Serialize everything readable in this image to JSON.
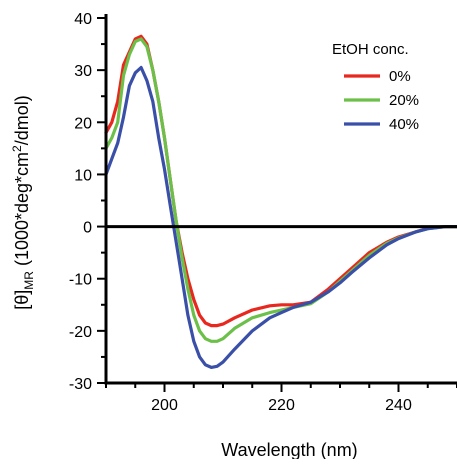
{
  "chart_data": {
    "type": "line",
    "xlabel": "Wavelength (nm)",
    "ylabel": {
      "pre": "[θ]",
      "sub": "MR",
      "mid1": " (1000*deg*cm",
      "sup": "2",
      "mid2": "/dmol)"
    },
    "xlim": [
      190,
      250
    ],
    "ylim": [
      -30,
      40
    ],
    "x_ticks": [
      200,
      220,
      240
    ],
    "y_ticks": [
      -30,
      -20,
      -10,
      0,
      10,
      20,
      30,
      40
    ],
    "legend_title": "EtOH conc.",
    "legend_position": "top-right",
    "zero_line": true,
    "series": [
      {
        "name": "0%",
        "color": "#e8281e",
        "points": [
          [
            190,
            18
          ],
          [
            191,
            20
          ],
          [
            192,
            24
          ],
          [
            193,
            31
          ],
          [
            194,
            33.5
          ],
          [
            195,
            36
          ],
          [
            196,
            36.5
          ],
          [
            197,
            35
          ],
          [
            198,
            30
          ],
          [
            199,
            24
          ],
          [
            200,
            17
          ],
          [
            201,
            9
          ],
          [
            202,
            1
          ],
          [
            203,
            -5
          ],
          [
            204,
            -10
          ],
          [
            205,
            -14
          ],
          [
            206,
            -17
          ],
          [
            207,
            -18.5
          ],
          [
            208,
            -19
          ],
          [
            209,
            -19
          ],
          [
            210,
            -18.7
          ],
          [
            212,
            -17.5
          ],
          [
            215,
            -16
          ],
          [
            218,
            -15.2
          ],
          [
            220,
            -15
          ],
          [
            222,
            -15
          ],
          [
            225,
            -14.5
          ],
          [
            228,
            -12
          ],
          [
            230,
            -10
          ],
          [
            232,
            -8
          ],
          [
            235,
            -5
          ],
          [
            238,
            -3
          ],
          [
            240,
            -2
          ],
          [
            243,
            -1
          ],
          [
            245,
            -0.3
          ],
          [
            248,
            0
          ],
          [
            250,
            0
          ]
        ]
      },
      {
        "name": "20%",
        "color": "#6cc04a",
        "points": [
          [
            190,
            15
          ],
          [
            191,
            17
          ],
          [
            192,
            20
          ],
          [
            193,
            29
          ],
          [
            194,
            33
          ],
          [
            195,
            35.5
          ],
          [
            196,
            36
          ],
          [
            197,
            34.5
          ],
          [
            198,
            30
          ],
          [
            199,
            24
          ],
          [
            200,
            17
          ],
          [
            201,
            9
          ],
          [
            202,
            1
          ],
          [
            203,
            -6
          ],
          [
            204,
            -12
          ],
          [
            205,
            -17
          ],
          [
            206,
            -20
          ],
          [
            207,
            -21.5
          ],
          [
            208,
            -22
          ],
          [
            209,
            -22
          ],
          [
            210,
            -21.5
          ],
          [
            212,
            -19.5
          ],
          [
            215,
            -17.5
          ],
          [
            218,
            -16.5
          ],
          [
            220,
            -16
          ],
          [
            222,
            -15.5
          ],
          [
            225,
            -14.8
          ],
          [
            228,
            -12.5
          ],
          [
            230,
            -10.5
          ],
          [
            232,
            -8.5
          ],
          [
            235,
            -5.5
          ],
          [
            238,
            -3.2
          ],
          [
            240,
            -2.2
          ],
          [
            243,
            -1
          ],
          [
            245,
            -0.4
          ],
          [
            248,
            0
          ],
          [
            250,
            0
          ]
        ]
      },
      {
        "name": "40%",
        "color": "#3a4fa8",
        "points": [
          [
            190,
            10
          ],
          [
            191,
            13
          ],
          [
            192,
            16
          ],
          [
            193,
            21
          ],
          [
            194,
            27
          ],
          [
            195,
            29.5
          ],
          [
            196,
            30.5
          ],
          [
            197,
            28
          ],
          [
            198,
            24
          ],
          [
            199,
            17
          ],
          [
            200,
            11
          ],
          [
            201,
            4
          ],
          [
            202,
            -3
          ],
          [
            203,
            -10
          ],
          [
            204,
            -17
          ],
          [
            205,
            -22
          ],
          [
            206,
            -25
          ],
          [
            207,
            -26.5
          ],
          [
            208,
            -27
          ],
          [
            209,
            -26.8
          ],
          [
            210,
            -26
          ],
          [
            212,
            -23.5
          ],
          [
            215,
            -20
          ],
          [
            218,
            -17.5
          ],
          [
            220,
            -16.5
          ],
          [
            222,
            -15.5
          ],
          [
            225,
            -14.5
          ],
          [
            228,
            -12.5
          ],
          [
            230,
            -10.8
          ],
          [
            232,
            -8.8
          ],
          [
            235,
            -6
          ],
          [
            238,
            -3.5
          ],
          [
            240,
            -2.3
          ],
          [
            243,
            -1
          ],
          [
            245,
            -0.4
          ],
          [
            248,
            0
          ],
          [
            250,
            0
          ]
        ]
      }
    ]
  }
}
